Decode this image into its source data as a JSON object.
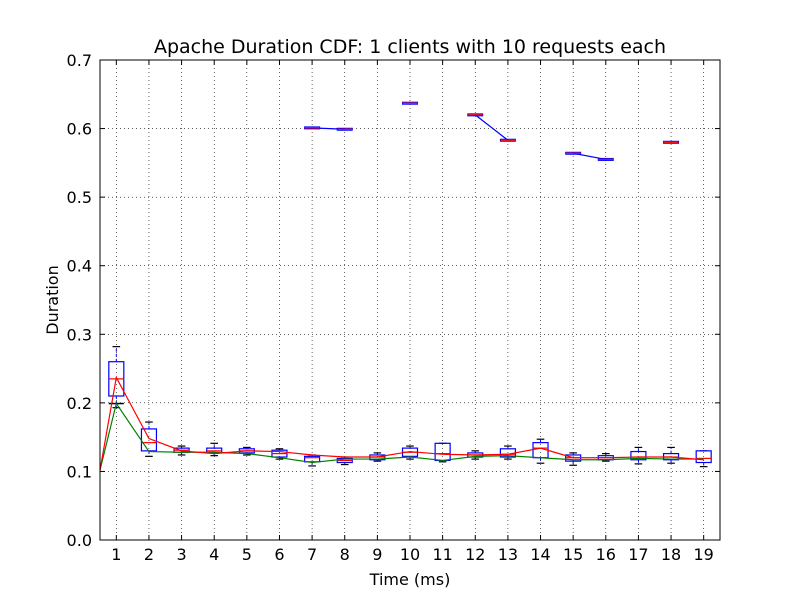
{
  "chart_data": {
    "type": "box",
    "title": "Apache Duration CDF: 1 clients with 10 requests each",
    "xlabel": "Time (ms)",
    "ylabel": "Duration",
    "ylim": [
      0.0,
      0.7
    ],
    "yticks": [
      "0.0",
      "0.1",
      "0.2",
      "0.3",
      "0.4",
      "0.5",
      "0.6",
      "0.7"
    ],
    "categories": [
      "1",
      "2",
      "3",
      "4",
      "5",
      "6",
      "7",
      "8",
      "9",
      "10",
      "11",
      "12",
      "13",
      "14",
      "15",
      "16",
      "17",
      "18",
      "19"
    ],
    "grid": true,
    "colors": {
      "box": "#0000ff",
      "median": "#ff0000",
      "min_line": "#008000",
      "mean_line": "#ff0000",
      "whisker": "#000000",
      "upper_line": "#0000ff"
    },
    "boxes": [
      {
        "x": 1,
        "whislo": 0.193,
        "q1": 0.21,
        "med": 0.235,
        "q3": 0.26,
        "whishi": 0.282
      },
      {
        "x": 2,
        "whislo": 0.122,
        "q1": 0.13,
        "med": 0.142,
        "q3": 0.162,
        "whishi": 0.172
      },
      {
        "x": 3,
        "whislo": 0.124,
        "q1": 0.128,
        "med": 0.131,
        "q3": 0.134,
        "whishi": 0.137
      },
      {
        "x": 4,
        "whislo": 0.123,
        "q1": 0.127,
        "med": 0.13,
        "q3": 0.134,
        "whishi": 0.141
      },
      {
        "x": 5,
        "whislo": 0.124,
        "q1": 0.127,
        "med": 0.13,
        "q3": 0.133,
        "whishi": 0.135
      },
      {
        "x": 6,
        "whislo": 0.118,
        "q1": 0.121,
        "med": 0.126,
        "q3": 0.131,
        "whishi": 0.133
      },
      {
        "x": 7,
        "whislo": 0.108,
        "q1": 0.114,
        "med": 0.12,
        "q3": 0.122,
        "whishi": 0.124
      },
      {
        "x": 8,
        "whislo": 0.11,
        "q1": 0.113,
        "med": 0.116,
        "q3": 0.119,
        "whishi": 0.121
      },
      {
        "x": 9,
        "whislo": 0.115,
        "q1": 0.117,
        "med": 0.121,
        "q3": 0.124,
        "whishi": 0.127
      },
      {
        "x": 10,
        "whislo": 0.118,
        "q1": 0.122,
        "med": 0.128,
        "q3": 0.134,
        "whishi": 0.137
      },
      {
        "x": 11,
        "whislo": 0.114,
        "q1": 0.116,
        "med": 0.126,
        "q3": 0.141,
        "whishi": 0.141
      },
      {
        "x": 12,
        "whislo": 0.118,
        "q1": 0.121,
        "med": 0.124,
        "q3": 0.127,
        "whishi": 0.13
      },
      {
        "x": 13,
        "whislo": 0.118,
        "q1": 0.121,
        "med": 0.125,
        "q3": 0.133,
        "whishi": 0.137
      },
      {
        "x": 14,
        "whislo": 0.112,
        "q1": 0.12,
        "med": 0.134,
        "q3": 0.142,
        "whishi": 0.147
      },
      {
        "x": 15,
        "whislo": 0.109,
        "q1": 0.115,
        "med": 0.12,
        "q3": 0.124,
        "whishi": 0.127
      },
      {
        "x": 16,
        "whislo": 0.115,
        "q1": 0.117,
        "med": 0.12,
        "q3": 0.123,
        "whishi": 0.126
      },
      {
        "x": 17,
        "whislo": 0.111,
        "q1": 0.117,
        "med": 0.121,
        "q3": 0.129,
        "whishi": 0.135
      },
      {
        "x": 18,
        "whislo": 0.112,
        "q1": 0.117,
        "med": 0.121,
        "q3": 0.126,
        "whishi": 0.135
      },
      {
        "x": 19,
        "whislo": 0.107,
        "q1": 0.113,
        "med": 0.119,
        "q3": 0.13,
        "whishi": 0.13
      }
    ],
    "outlier_boxes": [
      {
        "x": 7,
        "value": 0.601
      },
      {
        "x": 8,
        "value": 0.599
      },
      {
        "x": 10,
        "value": 0.637
      },
      {
        "x": 12,
        "value": 0.62
      },
      {
        "x": 13,
        "value": 0.583
      },
      {
        "x": 15,
        "value": 0.564
      },
      {
        "x": 16,
        "value": 0.555
      },
      {
        "x": 18,
        "value": 0.58
      }
    ],
    "upper_segments": [
      [
        7,
        8
      ],
      [
        12,
        13
      ],
      [
        15,
        16
      ]
    ],
    "box1_low_marker": {
      "x": 1,
      "value": 0.199
    },
    "min_series": {
      "x": [
        0.5,
        1,
        2,
        3,
        4,
        5,
        6,
        7,
        8,
        9,
        10,
        11,
        12,
        13,
        14,
        15,
        16,
        17,
        18,
        19
      ],
      "values": [
        0.102,
        0.199,
        0.129,
        0.128,
        0.128,
        0.126,
        0.12,
        0.113,
        0.118,
        0.118,
        0.121,
        0.116,
        0.122,
        0.123,
        0.12,
        0.117,
        0.117,
        0.119,
        0.118,
        0.118
      ]
    },
    "mean_series": {
      "x": [
        0.5,
        1,
        2,
        3,
        4,
        5,
        6,
        7,
        8,
        9,
        10,
        11,
        12,
        13,
        14,
        15,
        16,
        17,
        18,
        19
      ],
      "values": [
        0.102,
        0.237,
        0.148,
        0.13,
        0.126,
        0.13,
        0.129,
        0.124,
        0.121,
        0.121,
        0.129,
        0.125,
        0.124,
        0.125,
        0.134,
        0.12,
        0.12,
        0.121,
        0.121,
        0.117
      ]
    }
  }
}
